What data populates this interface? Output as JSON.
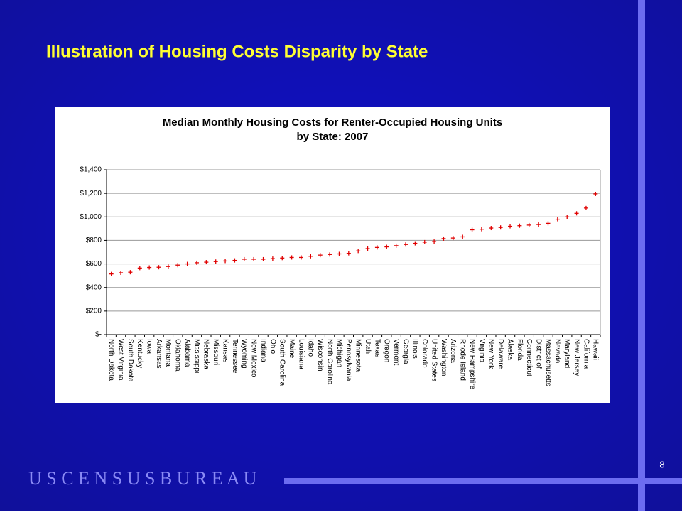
{
  "slide_title": "Illustration of Housing Costs Disparity by State",
  "footer": "U S C E N S U S B U R E A U",
  "page_number": "8",
  "chart_data": {
    "type": "marker",
    "title": [
      "Median Monthly Housing Costs for Renter-Occupied Housing Units",
      "by State: 2007"
    ],
    "categories": [
      "North Dakota",
      "West Virginia",
      "South Dakota",
      "Kentucky",
      "Iowa",
      "Arkansas",
      "Montana",
      "Oklahoma",
      "Alabama",
      "Mississippi",
      "Nebraska",
      "Missouri",
      "Kansas",
      "Tennessee",
      "Wyoming",
      "New Mexico",
      "Indiana",
      "Ohio",
      "South Carolina",
      "Maine",
      "Louisiana",
      "Idaho",
      "Wisconsin",
      "North Carolina",
      "Michigan",
      "Pennsylvania",
      "Minnesota",
      "Utah",
      "Texas",
      "Oregon",
      "Vermont",
      "Georgia",
      "Illinois",
      "Colorado",
      "United States",
      "Washington",
      "Arizona",
      "Rhode Island",
      "New Hampshire",
      "Virginia",
      "New York",
      "Delaware",
      "Alaska",
      "Florida",
      "Connecticut",
      "District of",
      "Massachusetts",
      "Nevada",
      "Maryland",
      "New Jersey",
      "California",
      "Hawaii"
    ],
    "values": [
      515,
      525,
      530,
      565,
      570,
      572,
      578,
      590,
      600,
      610,
      615,
      620,
      625,
      630,
      640,
      640,
      640,
      645,
      650,
      655,
      655,
      665,
      675,
      680,
      685,
      690,
      710,
      730,
      740,
      745,
      755,
      765,
      775,
      785,
      790,
      815,
      820,
      830,
      890,
      895,
      905,
      910,
      920,
      925,
      930,
      935,
      945,
      980,
      1000,
      1030,
      1075,
      1195
    ],
    "color": "#e00000",
    "ylim": [
      0,
      1400
    ],
    "yticks": [
      {
        "value": 0,
        "label": "$-"
      },
      {
        "value": 200,
        "label": "$200"
      },
      {
        "value": 400,
        "label": "$400"
      },
      {
        "value": 600,
        "label": "$600"
      },
      {
        "value": 800,
        "label": "$800"
      },
      {
        "value": 1000,
        "label": "$1,000"
      },
      {
        "value": 1200,
        "label": "$1,200"
      },
      {
        "value": 1400,
        "label": "$1,400"
      }
    ],
    "grid": true
  }
}
